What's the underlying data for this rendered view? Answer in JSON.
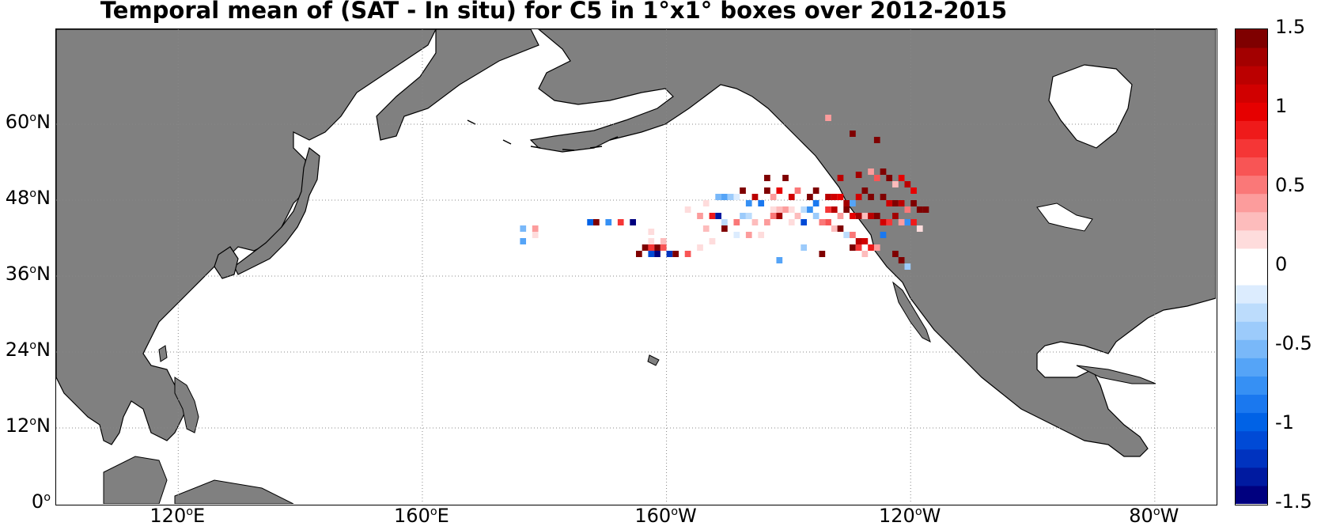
{
  "title": "Temporal mean of (SAT - In situ) for C5 in 1°x1° boxes over 2012-2015",
  "lat_labels": [
    {
      "deg": "60",
      "hemi": "N",
      "lat": 60
    },
    {
      "deg": "48",
      "hemi": "N",
      "lat": 48
    },
    {
      "deg": "36",
      "hemi": "N",
      "lat": 36
    },
    {
      "deg": "24",
      "hemi": "N",
      "lat": 24
    },
    {
      "deg": "12",
      "hemi": "N",
      "lat": 12
    },
    {
      "deg": "0",
      "hemi": "",
      "lat": 0
    }
  ],
  "lon_labels": [
    {
      "deg": "120",
      "hemi": "E",
      "lon": 120
    },
    {
      "deg": "160",
      "hemi": "E",
      "lon": 160
    },
    {
      "deg": "160",
      "hemi": "W",
      "lon": 200
    },
    {
      "deg": "120",
      "hemi": "W",
      "lon": 240
    },
    {
      "deg": "80",
      "hemi": "W",
      "lon": 280
    }
  ],
  "map_extent": {
    "lon_min": 100,
    "lon_max": 290,
    "lat_min": 0,
    "lat_max": 75
  },
  "colorbar": {
    "min": -1.5,
    "max": 1.5,
    "ticks": [
      "1.5",
      "1",
      "0.5",
      "0",
      "-0.5",
      "-1",
      "-1.5"
    ],
    "tick_values": [
      1.5,
      1,
      0.5,
      0,
      -0.5,
      -1,
      -1.5
    ],
    "colormap": [
      "#00007f",
      "#001aa0",
      "#0033bf",
      "#004ad6",
      "#0062e6",
      "#1a78ef",
      "#3690f4",
      "#55a4f7",
      "#79b8f9",
      "#9ccbfb",
      "#bcdcfc",
      "#dcecfe",
      "#ffffff",
      "#ffffff",
      "#fedcdc",
      "#fdbcbc",
      "#fc9c9c",
      "#fa7878",
      "#f85555",
      "#f53636",
      "#ef1a1a",
      "#e60000",
      "#d10000",
      "#bb0000",
      "#a30000",
      "#7f0000"
    ]
  },
  "colors": {
    "land": "#808080",
    "ocean": "#ffffff",
    "grid": "#888888",
    "coast": "#000000"
  },
  "chart_data": {
    "type": "heatmap",
    "title": "Temporal mean of (SAT - In situ) for C5 in 1°x1° boxes over 2012-2015",
    "value_range": [
      -1.5,
      1.5
    ],
    "grid": true,
    "cells": [
      {
        "lon": 226,
        "lat": 60.5,
        "value": 0.4
      },
      {
        "lon": 230,
        "lat": 58,
        "value": 1.5
      },
      {
        "lon": 234,
        "lat": 57,
        "value": 1.5
      },
      {
        "lon": 216,
        "lat": 51,
        "value": 1.5
      },
      {
        "lon": 219,
        "lat": 51,
        "value": 1.4
      },
      {
        "lon": 228,
        "lat": 51,
        "value": 1.2
      },
      {
        "lon": 231,
        "lat": 51.5,
        "value": 1.3
      },
      {
        "lon": 233,
        "lat": 52,
        "value": 0.4
      },
      {
        "lon": 234,
        "lat": 51,
        "value": 0.6
      },
      {
        "lon": 235,
        "lat": 52,
        "value": 1.5
      },
      {
        "lon": 236,
        "lat": 51,
        "value": 1.5
      },
      {
        "lon": 237,
        "lat": 50,
        "value": 0.3
      },
      {
        "lon": 238,
        "lat": 51,
        "value": 1.0
      },
      {
        "lon": 239,
        "lat": 50,
        "value": 1.2
      },
      {
        "lon": 240,
        "lat": 49,
        "value": 1.0
      },
      {
        "lon": 212,
        "lat": 49,
        "value": 1.5
      },
      {
        "lon": 214,
        "lat": 48,
        "value": 1.2
      },
      {
        "lon": 216,
        "lat": 49,
        "value": 1.5
      },
      {
        "lon": 217,
        "lat": 48,
        "value": 0.4
      },
      {
        "lon": 218,
        "lat": 49,
        "value": 1.0
      },
      {
        "lon": 220,
        "lat": 48,
        "value": 1.1
      },
      {
        "lon": 221,
        "lat": 49,
        "value": 0.5
      },
      {
        "lon": 223,
        "lat": 48,
        "value": 1.5
      },
      {
        "lon": 224,
        "lat": 49,
        "value": 1.5
      },
      {
        "lon": 226,
        "lat": 48,
        "value": 1.2
      },
      {
        "lon": 227,
        "lat": 48,
        "value": 1.1
      },
      {
        "lon": 228,
        "lat": 48,
        "value": 1.0
      },
      {
        "lon": 229,
        "lat": 47,
        "value": 1.3
      },
      {
        "lon": 230,
        "lat": 47,
        "value": -0.6
      },
      {
        "lon": 231,
        "lat": 48,
        "value": 1.1
      },
      {
        "lon": 232,
        "lat": 49,
        "value": 1.5
      },
      {
        "lon": 233,
        "lat": 48,
        "value": 1.5
      },
      {
        "lon": 235,
        "lat": 48,
        "value": 1.5
      },
      {
        "lon": 236,
        "lat": 47,
        "value": 1.1
      },
      {
        "lon": 237,
        "lat": 47,
        "value": 1.4
      },
      {
        "lon": 238,
        "lat": 47,
        "value": 1.2
      },
      {
        "lon": 239,
        "lat": 46,
        "value": 0.5
      },
      {
        "lon": 240,
        "lat": 47,
        "value": 1.5
      },
      {
        "lon": 241,
        "lat": 46,
        "value": 1.5
      },
      {
        "lon": 242,
        "lat": 46,
        "value": 1.5
      },
      {
        "lon": 206,
        "lat": 47,
        "value": 0.2
      },
      {
        "lon": 207,
        "lat": 47,
        "value": -0.1
      },
      {
        "lon": 208,
        "lat": 48,
        "value": -0.5
      },
      {
        "lon": 209,
        "lat": 48,
        "value": -0.6
      },
      {
        "lon": 210,
        "lat": 48,
        "value": -0.4
      },
      {
        "lon": 211,
        "lat": 48,
        "value": -0.2
      },
      {
        "lon": 213,
        "lat": 47,
        "value": -0.7
      },
      {
        "lon": 215,
        "lat": 47,
        "value": -0.9
      },
      {
        "lon": 217,
        "lat": 46,
        "value": 0.2
      },
      {
        "lon": 218,
        "lat": 46,
        "value": 0.3
      },
      {
        "lon": 219,
        "lat": 46,
        "value": 0.4
      },
      {
        "lon": 220,
        "lat": 46,
        "value": 0.2
      },
      {
        "lon": 222,
        "lat": 46,
        "value": -0.3
      },
      {
        "lon": 223,
        "lat": 46,
        "value": -0.7
      },
      {
        "lon": 224,
        "lat": 47,
        "value": -0.9
      },
      {
        "lon": 226,
        "lat": 46,
        "value": 0.7
      },
      {
        "lon": 227,
        "lat": 46,
        "value": 1.2
      },
      {
        "lon": 228,
        "lat": 45,
        "value": 0.4
      },
      {
        "lon": 229,
        "lat": 46,
        "value": 1.5
      },
      {
        "lon": 230,
        "lat": 45,
        "value": 1.0
      },
      {
        "lon": 231,
        "lat": 45,
        "value": 1.3
      },
      {
        "lon": 232,
        "lat": 45,
        "value": 0.3
      },
      {
        "lon": 233,
        "lat": 45,
        "value": 1.2
      },
      {
        "lon": 234,
        "lat": 45,
        "value": 1.5
      },
      {
        "lon": 235,
        "lat": 44,
        "value": 1.1
      },
      {
        "lon": 236,
        "lat": 44,
        "value": 0.8
      },
      {
        "lon": 237,
        "lat": 45,
        "value": 1.3
      },
      {
        "lon": 238,
        "lat": 44,
        "value": 0.4
      },
      {
        "lon": 239,
        "lat": 44,
        "value": -0.8
      },
      {
        "lon": 240,
        "lat": 44,
        "value": 0.9
      },
      {
        "lon": 241,
        "lat": 43,
        "value": 0.2
      },
      {
        "lon": 203,
        "lat": 46,
        "value": 0.2
      },
      {
        "lon": 205,
        "lat": 45,
        "value": 0.4
      },
      {
        "lon": 207,
        "lat": 45,
        "value": 0.9
      },
      {
        "lon": 208,
        "lat": 45,
        "value": -1.3
      },
      {
        "lon": 209,
        "lat": 44,
        "value": -0.3
      },
      {
        "lon": 210,
        "lat": 45,
        "value": 0.1
      },
      {
        "lon": 211,
        "lat": 44,
        "value": 0.5
      },
      {
        "lon": 212,
        "lat": 45,
        "value": -0.4
      },
      {
        "lon": 213,
        "lat": 45,
        "value": -0.3
      },
      {
        "lon": 214,
        "lat": 44,
        "value": 0.3
      },
      {
        "lon": 216,
        "lat": 44,
        "value": 0.4
      },
      {
        "lon": 217,
        "lat": 45,
        "value": 0.5
      },
      {
        "lon": 218,
        "lat": 45,
        "value": 1.3
      },
      {
        "lon": 220,
        "lat": 44,
        "value": 0.2
      },
      {
        "lon": 221,
        "lat": 45,
        "value": 0.3
      },
      {
        "lon": 222,
        "lat": 44,
        "value": -1.1
      },
      {
        "lon": 224,
        "lat": 45,
        "value": -0.4
      },
      {
        "lon": 225,
        "lat": 44,
        "value": 0.5
      },
      {
        "lon": 226,
        "lat": 44,
        "value": 0.6
      },
      {
        "lon": 227,
        "lat": 43,
        "value": 0.3
      },
      {
        "lon": 228,
        "lat": 43,
        "value": 1.4
      },
      {
        "lon": 229,
        "lat": 42,
        "value": -0.3
      },
      {
        "lon": 230,
        "lat": 42,
        "value": 0.5
      },
      {
        "lon": 231,
        "lat": 41,
        "value": 1.2
      },
      {
        "lon": 232,
        "lat": 41,
        "value": 1.1
      },
      {
        "lon": 233,
        "lat": 40,
        "value": 0.9
      },
      {
        "lon": 234,
        "lat": 40,
        "value": 0.4
      },
      {
        "lon": 235,
        "lat": 42,
        "value": -0.9
      },
      {
        "lon": 206,
        "lat": 43,
        "value": 0.3
      },
      {
        "lon": 209,
        "lat": 43,
        "value": 1.5
      },
      {
        "lon": 211,
        "lat": 42,
        "value": -0.2
      },
      {
        "lon": 213,
        "lat": 42,
        "value": 0.4
      },
      {
        "lon": 215,
        "lat": 42,
        "value": 0.2
      },
      {
        "lon": 230,
        "lat": 40,
        "value": 1.5
      },
      {
        "lon": 231,
        "lat": 40,
        "value": 0.8
      },
      {
        "lon": 232,
        "lat": 39,
        "value": 0.3
      },
      {
        "lon": 237,
        "lat": 39,
        "value": 1.5
      },
      {
        "lon": 238,
        "lat": 38,
        "value": 1.4
      },
      {
        "lon": 222,
        "lat": 40,
        "value": -0.4
      },
      {
        "lon": 225,
        "lat": 39,
        "value": 1.5
      },
      {
        "lon": 218,
        "lat": 38,
        "value": -0.6
      },
      {
        "lon": 239,
        "lat": 37,
        "value": -0.4
      },
      {
        "lon": 207,
        "lat": 41,
        "value": 0.2
      },
      {
        "lon": 205,
        "lat": 40,
        "value": 0.2
      },
      {
        "lon": 203,
        "lat": 39,
        "value": 0.6
      },
      {
        "lon": 198,
        "lat": 40,
        "value": 1.5
      },
      {
        "lon": 199,
        "lat": 40,
        "value": 0.6
      },
      {
        "lon": 196,
        "lat": 40,
        "value": 1.5
      },
      {
        "lon": 197,
        "lat": 40,
        "value": 0.7
      },
      {
        "lon": 194,
        "lat": 44,
        "value": -1.5
      },
      {
        "lon": 192,
        "lat": 44,
        "value": 0.7
      },
      {
        "lon": 190,
        "lat": 44,
        "value": -0.8
      },
      {
        "lon": 188,
        "lat": 44,
        "value": 1.5
      },
      {
        "lon": 187,
        "lat": 44,
        "value": -1.0
      },
      {
        "lon": 195,
        "lat": 39,
        "value": 1.5
      },
      {
        "lon": 197,
        "lat": 39,
        "value": -1.1
      },
      {
        "lon": 198,
        "lat": 39,
        "value": -1.5
      },
      {
        "lon": 200,
        "lat": 39,
        "value": -1.2
      },
      {
        "lon": 201,
        "lat": 39,
        "value": 1.5
      },
      {
        "lon": 176,
        "lat": 43,
        "value": -0.5
      },
      {
        "lon": 176,
        "lat": 41,
        "value": -0.6
      },
      {
        "lon": 178,
        "lat": 43,
        "value": 0.4
      },
      {
        "lon": 178,
        "lat": 42,
        "value": 0.2
      },
      {
        "lon": 177,
        "lat": 41,
        "value": -0.1
      },
      {
        "lon": 197,
        "lat": 41,
        "value": 0.2
      },
      {
        "lon": 199,
        "lat": 41,
        "value": 0.3
      },
      {
        "lon": 197,
        "lat": 42.5,
        "value": 0.2
      }
    ]
  }
}
